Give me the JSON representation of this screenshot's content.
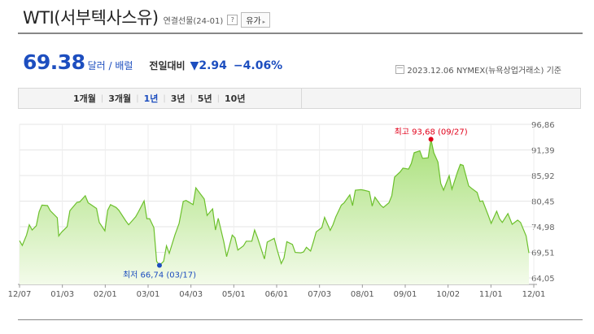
{
  "header": {
    "title": "WTI(서부텍사스유)",
    "subtitle": "연결선물(24-01)",
    "help": "?",
    "dropdown_label": "유가",
    "dropdown_caret": "▸"
  },
  "quote": {
    "price": "69.38",
    "unit": "달러 / 배럴",
    "change_label": "전일대비",
    "change_value": "▼2.94",
    "change_percent": "−4.06%",
    "source": "2023.12.06  NYMEX(뉴욕상업거래소) 기준"
  },
  "tabs": [
    {
      "label": "1개월",
      "active": false
    },
    {
      "label": "3개월",
      "active": false
    },
    {
      "label": "1년",
      "active": true
    },
    {
      "label": "3년",
      "active": false
    },
    {
      "label": "5년",
      "active": false
    },
    {
      "label": "10년",
      "active": false
    }
  ],
  "colors": {
    "accent": "#1d4ebf",
    "line": "#6cc02c",
    "fill_top": "#a9e07a",
    "fill_bottom": "#f3fbea",
    "high": "#e2001a",
    "low": "#1d4ebf"
  },
  "chart_data": {
    "type": "area",
    "x_ticks": [
      "12/07",
      "01/03",
      "02/01",
      "03/01",
      "04/03",
      "05/01",
      "06/01",
      "07/03",
      "08/01",
      "09/01",
      "10/02",
      "11/01",
      "12/01"
    ],
    "y_ticks": [
      "96,86",
      "91,39",
      "85,92",
      "80,45",
      "74,98",
      "69,51",
      "64,05"
    ],
    "ylim": [
      64.05,
      96.86
    ],
    "x_range": [
      "2022-12-07",
      "2023-12-06"
    ],
    "grid": true,
    "high_label": "최고 93,68 (09/27)",
    "low_label": "최저 66,74 (03/17)",
    "high": {
      "date": "2023-09-27",
      "value": 93.68
    },
    "low": {
      "date": "2023-03-17",
      "value": 66.74
    },
    "series": [
      {
        "points": [
          [
            "2022-12-07",
            72.0
          ],
          [
            "2022-12-09",
            71.0
          ],
          [
            "2022-12-12",
            73.2
          ],
          [
            "2022-12-14",
            75.4
          ],
          [
            "2022-12-16",
            74.3
          ],
          [
            "2022-12-19",
            75.2
          ],
          [
            "2022-12-21",
            78.2
          ],
          [
            "2022-12-23",
            79.6
          ],
          [
            "2022-12-27",
            79.5
          ],
          [
            "2022-12-29",
            78.4
          ],
          [
            "2023-01-03",
            76.9
          ],
          [
            "2023-01-04",
            73.0
          ],
          [
            "2023-01-06",
            73.8
          ],
          [
            "2023-01-10",
            75.0
          ],
          [
            "2023-01-12",
            78.4
          ],
          [
            "2023-01-17",
            80.2
          ],
          [
            "2023-01-19",
            80.3
          ],
          [
            "2023-01-23",
            81.6
          ],
          [
            "2023-01-25",
            80.1
          ],
          [
            "2023-01-27",
            79.7
          ],
          [
            "2023-01-31",
            78.9
          ],
          [
            "2023-02-02",
            75.9
          ],
          [
            "2023-02-06",
            74.1
          ],
          [
            "2023-02-08",
            78.5
          ],
          [
            "2023-02-10",
            79.7
          ],
          [
            "2023-02-14",
            79.1
          ],
          [
            "2023-02-16",
            78.5
          ],
          [
            "2023-02-21",
            76.2
          ],
          [
            "2023-02-23",
            75.4
          ],
          [
            "2023-02-28",
            77.1
          ],
          [
            "2023-03-02",
            78.2
          ],
          [
            "2023-03-06",
            80.5
          ],
          [
            "2023-03-08",
            76.7
          ],
          [
            "2023-03-10",
            76.7
          ],
          [
            "2023-03-13",
            74.8
          ],
          [
            "2023-03-15",
            67.6
          ],
          [
            "2023-03-17",
            66.74
          ],
          [
            "2023-03-20",
            67.6
          ],
          [
            "2023-03-22",
            70.9
          ],
          [
            "2023-03-24",
            69.3
          ],
          [
            "2023-03-28",
            73.2
          ],
          [
            "2023-03-31",
            75.7
          ],
          [
            "2023-04-03",
            80.4
          ],
          [
            "2023-04-05",
            80.6
          ],
          [
            "2023-04-10",
            79.7
          ],
          [
            "2023-04-12",
            83.3
          ],
          [
            "2023-04-14",
            82.5
          ],
          [
            "2023-04-18",
            80.9
          ],
          [
            "2023-04-20",
            77.4
          ],
          [
            "2023-04-24",
            78.8
          ],
          [
            "2023-04-26",
            74.3
          ],
          [
            "2023-04-28",
            76.8
          ],
          [
            "2023-05-02",
            71.7
          ],
          [
            "2023-05-04",
            68.6
          ],
          [
            "2023-05-08",
            73.2
          ],
          [
            "2023-05-10",
            72.6
          ],
          [
            "2023-05-12",
            70.0
          ],
          [
            "2023-05-16",
            70.9
          ],
          [
            "2023-05-18",
            71.9
          ],
          [
            "2023-05-22",
            71.9
          ],
          [
            "2023-05-24",
            74.3
          ],
          [
            "2023-05-26",
            72.7
          ],
          [
            "2023-05-31",
            68.1
          ],
          [
            "2023-06-02",
            71.7
          ],
          [
            "2023-06-05",
            72.2
          ],
          [
            "2023-06-07",
            72.5
          ],
          [
            "2023-06-09",
            70.2
          ],
          [
            "2023-06-12",
            67.1
          ],
          [
            "2023-06-14",
            68.3
          ],
          [
            "2023-06-16",
            71.8
          ],
          [
            "2023-06-20",
            71.2
          ],
          [
            "2023-06-22",
            69.5
          ],
          [
            "2023-06-26",
            69.4
          ],
          [
            "2023-06-28",
            69.6
          ],
          [
            "2023-06-30",
            70.6
          ],
          [
            "2023-07-03",
            69.8
          ],
          [
            "2023-07-05",
            71.8
          ],
          [
            "2023-07-07",
            73.9
          ],
          [
            "2023-07-11",
            74.8
          ],
          [
            "2023-07-13",
            77.0
          ],
          [
            "2023-07-17",
            74.2
          ],
          [
            "2023-07-19",
            75.4
          ],
          [
            "2023-07-21",
            77.1
          ],
          [
            "2023-07-25",
            79.6
          ],
          [
            "2023-07-27",
            80.1
          ],
          [
            "2023-07-31",
            81.8
          ],
          [
            "2023-08-02",
            79.5
          ],
          [
            "2023-08-04",
            82.8
          ],
          [
            "2023-08-08",
            82.9
          ],
          [
            "2023-08-10",
            82.8
          ],
          [
            "2023-08-14",
            82.5
          ],
          [
            "2023-08-16",
            79.4
          ],
          [
            "2023-08-18",
            81.3
          ],
          [
            "2023-08-22",
            79.6
          ],
          [
            "2023-08-24",
            79.1
          ],
          [
            "2023-08-28",
            80.1
          ],
          [
            "2023-08-30",
            81.6
          ],
          [
            "2023-09-01",
            85.6
          ],
          [
            "2023-09-05",
            86.7
          ],
          [
            "2023-09-07",
            87.5
          ],
          [
            "2023-09-11",
            87.3
          ],
          [
            "2023-09-13",
            88.5
          ],
          [
            "2023-09-15",
            90.8
          ],
          [
            "2023-09-19",
            91.2
          ],
          [
            "2023-09-21",
            89.6
          ],
          [
            "2023-09-25",
            89.7
          ],
          [
            "2023-09-27",
            93.68
          ],
          [
            "2023-09-29",
            90.8
          ],
          [
            "2023-10-02",
            88.8
          ],
          [
            "2023-10-04",
            84.2
          ],
          [
            "2023-10-06",
            82.8
          ],
          [
            "2023-10-10",
            85.9
          ],
          [
            "2023-10-12",
            83.0
          ],
          [
            "2023-10-16",
            86.7
          ],
          [
            "2023-10-18",
            88.3
          ],
          [
            "2023-10-20",
            88.1
          ],
          [
            "2023-10-24",
            83.7
          ],
          [
            "2023-10-26",
            83.2
          ],
          [
            "2023-10-30",
            82.3
          ],
          [
            "2023-11-01",
            80.4
          ],
          [
            "2023-11-03",
            80.5
          ],
          [
            "2023-11-07",
            77.4
          ],
          [
            "2023-11-09",
            75.7
          ],
          [
            "2023-11-13",
            78.3
          ],
          [
            "2023-11-15",
            76.7
          ],
          [
            "2023-11-17",
            75.9
          ],
          [
            "2023-11-21",
            77.8
          ],
          [
            "2023-11-24",
            75.5
          ],
          [
            "2023-11-28",
            76.4
          ],
          [
            "2023-11-30",
            75.9
          ],
          [
            "2023-12-04",
            73.0
          ],
          [
            "2023-12-06",
            69.38
          ]
        ]
      }
    ]
  }
}
